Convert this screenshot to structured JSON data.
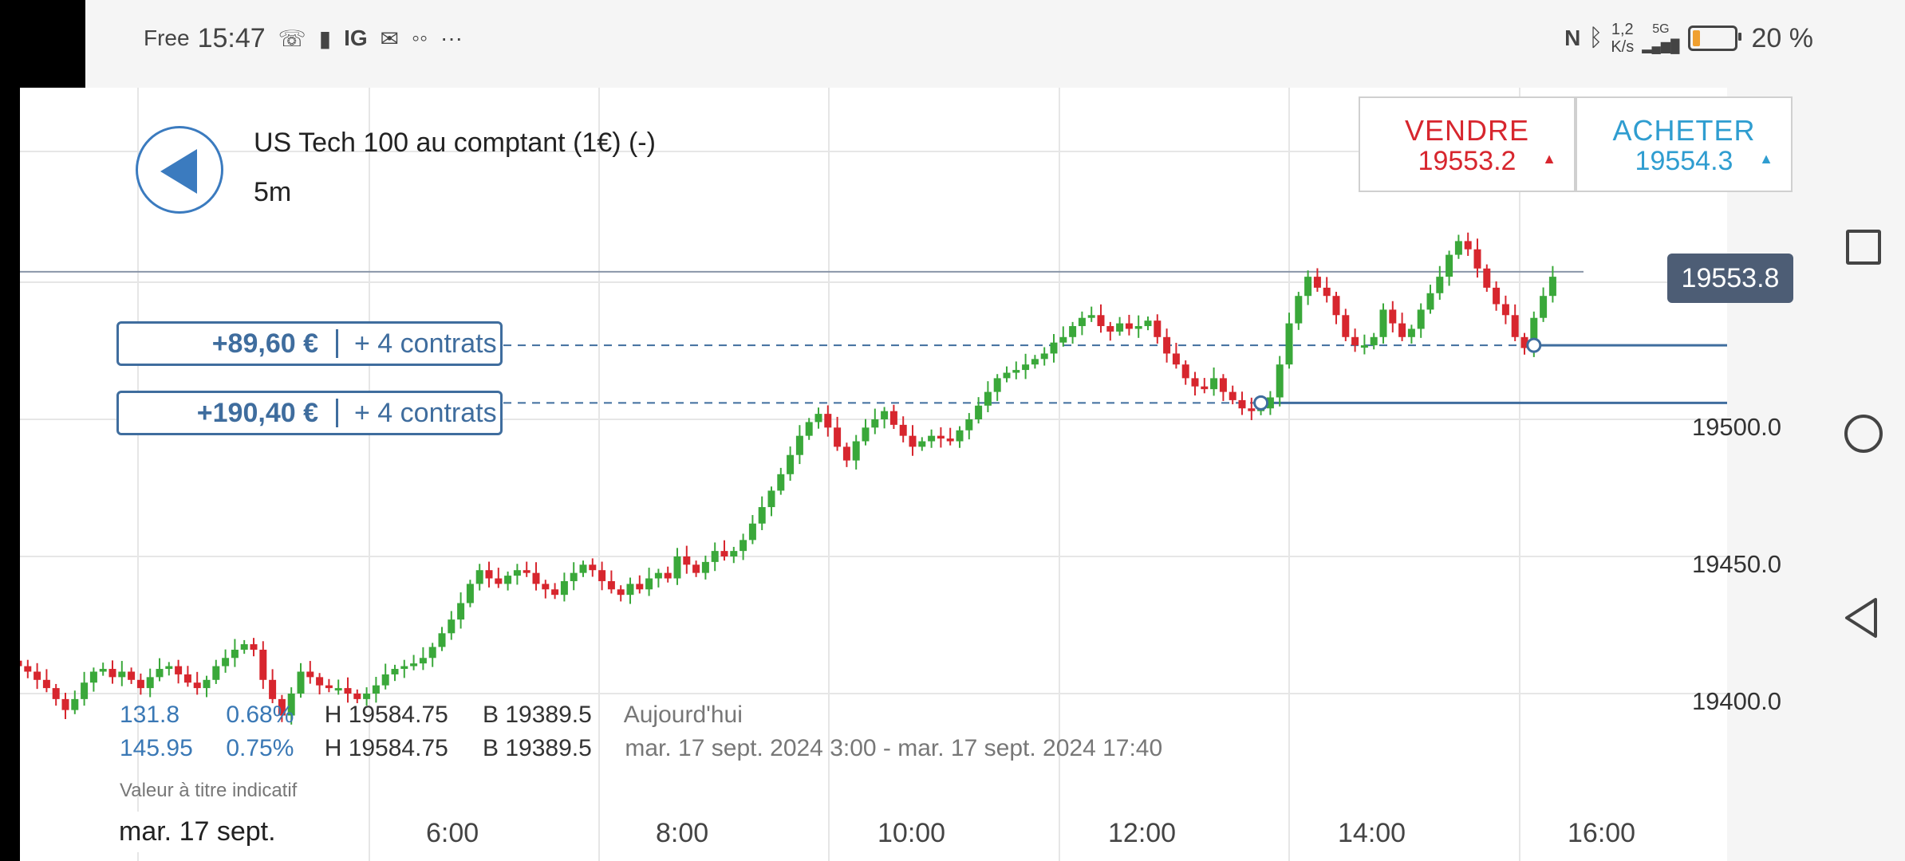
{
  "status_bar": {
    "carrier": "Free",
    "time": "15:47",
    "app_label": "IG",
    "network_speed_value": "1,2",
    "network_speed_unit": "K/s",
    "signal_label": "5G",
    "battery_percent": "20 %",
    "battery_level": 0.2
  },
  "instrument": {
    "name": "US Tech 100 au comptant (1€) (-)",
    "interval": "5m"
  },
  "trade": {
    "sell_label": "VENDRE",
    "sell_price": "19553.2",
    "buy_label": "ACHETER",
    "buy_price": "19554.3"
  },
  "current_price": "19553.8",
  "positions": [
    {
      "pnl": "+89,60 €",
      "quantity": "+ 4 contrats",
      "level": 19527
    },
    {
      "pnl": "+190,40 €",
      "quantity": "+ 4 contrats",
      "level": 19506
    }
  ],
  "stats": {
    "today": {
      "change": "131.8",
      "pct": "0.68%",
      "high": "H 19584.75",
      "low": "B 19389.5",
      "period": "Aujourd'hui"
    },
    "range": {
      "change": "145.95",
      "pct": "0.75%",
      "high": "H 19584.75",
      "low": "B 19389.5",
      "period": "mar. 17 sept. 2024 3:00 - mar. 17 sept. 2024 17:40"
    }
  },
  "note": "Valeur à titre indicatif",
  "x_axis": {
    "date_label": "mar. 17 sept.",
    "ticks": [
      "6:00",
      "8:00",
      "10:00",
      "12:00",
      "14:00",
      "16:00"
    ]
  },
  "y_axis": {
    "ticks": [
      "19500.0",
      "19450.0",
      "19400.0"
    ]
  },
  "colors": {
    "up": "#3aa83a",
    "down": "#d7262e",
    "accent": "#3f6d9e",
    "sell": "#d7262e",
    "buy": "#2f9dd0"
  },
  "chart_data": {
    "type": "candlestick",
    "title": "US Tech 100 au comptant (1€) (-)",
    "interval": "5m",
    "x_range": [
      "3:00",
      "17:40"
    ],
    "y_range": [
      19389.5,
      19584.75
    ],
    "y_ticks": [
      19400,
      19450,
      19500
    ],
    "x_ticks": [
      "6:00",
      "8:00",
      "10:00",
      "12:00",
      "14:00",
      "16:00"
    ],
    "current_price": 19553.8,
    "position_levels": [
      19527,
      19506
    ],
    "closes": [
      19410,
      19408,
      19405,
      19402,
      19398,
      19394,
      19398,
      19404,
      19408,
      19409,
      19406,
      19408,
      19405,
      19402,
      19406,
      19409,
      19410,
      19407,
      19404,
      19402,
      19405,
      19410,
      19413,
      19416,
      19418,
      19416,
      19405,
      19398,
      19392,
      19400,
      19408,
      19406,
      19403,
      19402,
      19402,
      19400,
      19398,
      19400,
      19403,
      19407,
      19409,
      19410,
      19411,
      19413,
      19417,
      19422,
      19427,
      19433,
      19440,
      19445,
      19442,
      19440,
      19443,
      19445,
      19444,
      19440,
      19438,
      19436,
      19441,
      19444,
      19447,
      19445,
      19441,
      19438,
      19436,
      19440,
      19438,
      19442,
      19444,
      19442,
      19450,
      19447,
      19444,
      19448,
      19452,
      19450,
      19452,
      19456,
      19462,
      19468,
      19474,
      19480,
      19487,
      19494,
      19499,
      19502,
      19497,
      19490,
      19485,
      19492,
      19497,
      19500,
      19503,
      19498,
      19494,
      19490,
      19492,
      19494,
      19493,
      19492,
      19496,
      19500,
      19505,
      19510,
      19515,
      19517,
      19518,
      19520,
      19522,
      19524,
      19528,
      19530,
      19534,
      19537,
      19538,
      19534,
      19532,
      19535,
      19533,
      19534,
      19536,
      19530,
      19524,
      19520,
      19515,
      19512,
      19511,
      19515,
      19510,
      19507,
      19504,
      19503,
      19504,
      19508,
      19520,
      19535,
      19545,
      19552,
      19548,
      19545,
      19538,
      19530,
      19527,
      19527,
      19530,
      19540,
      19535,
      19530,
      19533,
      19540,
      19546,
      19552,
      19560,
      19565,
      19562,
      19555,
      19548,
      19542,
      19538,
      19530,
      19526,
      19537,
      19545,
      19552
    ]
  }
}
